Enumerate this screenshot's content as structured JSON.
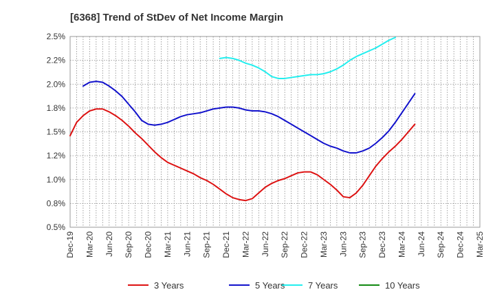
{
  "chart_data": {
    "type": "line",
    "title": "[6368]  Trend of StDev of Net Income Margin",
    "xlabel": "",
    "ylabel": "",
    "ylim": [
      0.5,
      2.5
    ],
    "y_ticks": [
      "0.5%",
      "0.8%",
      "1.0%",
      "1.2%",
      "1.5%",
      "1.8%",
      "2.0%",
      "2.2%",
      "2.5%"
    ],
    "x_ticks": [
      "Dec-19",
      "Mar-20",
      "Jun-20",
      "Sep-20",
      "Dec-20",
      "Mar-21",
      "Jun-21",
      "Sep-21",
      "Dec-21",
      "Mar-22",
      "Jun-22",
      "Sep-22",
      "Dec-22",
      "Mar-23",
      "Jun-23",
      "Sep-23",
      "Dec-23",
      "Mar-24",
      "Jun-24",
      "Sep-24",
      "Dec-24",
      "Mar-25"
    ],
    "grid": true,
    "legend_position": "bottom",
    "series": [
      {
        "name": "3 Years",
        "color": "#dd1111",
        "start_index": 0,
        "values": [
          1.46,
          1.6,
          1.67,
          1.72,
          1.74,
          1.74,
          1.71,
          1.67,
          1.62,
          1.56,
          1.49,
          1.43,
          1.36,
          1.29,
          1.23,
          1.18,
          1.15,
          1.12,
          1.09,
          1.06,
          1.02,
          0.99,
          0.95,
          0.9,
          0.85,
          0.81,
          0.79,
          0.78,
          0.8,
          0.86,
          0.92,
          0.96,
          0.99,
          1.01,
          1.04,
          1.07,
          1.08,
          1.08,
          1.05,
          1.0,
          0.95,
          0.89,
          0.82,
          0.81,
          0.86,
          0.94,
          1.04,
          1.14,
          1.22,
          1.29,
          1.35,
          1.42,
          1.5,
          1.58
        ]
      },
      {
        "name": "5 Years",
        "color": "#1111cc",
        "start_index": 2,
        "values": [
          1.98,
          2.02,
          2.03,
          2.02,
          1.98,
          1.93,
          1.87,
          1.79,
          1.71,
          1.62,
          1.58,
          1.57,
          1.58,
          1.6,
          1.63,
          1.66,
          1.68,
          1.69,
          1.7,
          1.72,
          1.74,
          1.75,
          1.76,
          1.76,
          1.75,
          1.73,
          1.72,
          1.72,
          1.71,
          1.69,
          1.66,
          1.62,
          1.58,
          1.54,
          1.5,
          1.46,
          1.42,
          1.38,
          1.35,
          1.33,
          1.3,
          1.28,
          1.28,
          1.3,
          1.33,
          1.38,
          1.44,
          1.51,
          1.6,
          1.7,
          1.8,
          1.9
        ]
      },
      {
        "name": "7 Years",
        "color": "#22eeee",
        "start_index": 23,
        "values": [
          2.27,
          2.28,
          2.27,
          2.25,
          2.22,
          2.2,
          2.17,
          2.13,
          2.08,
          2.06,
          2.06,
          2.07,
          2.08,
          2.09,
          2.1,
          2.1,
          2.11,
          2.13,
          2.16,
          2.2,
          2.25,
          2.29,
          2.32,
          2.35,
          2.38,
          2.42,
          2.46,
          2.49
        ]
      },
      {
        "name": "10 Years",
        "color": "#118811",
        "start_index": 0,
        "values": []
      }
    ]
  }
}
